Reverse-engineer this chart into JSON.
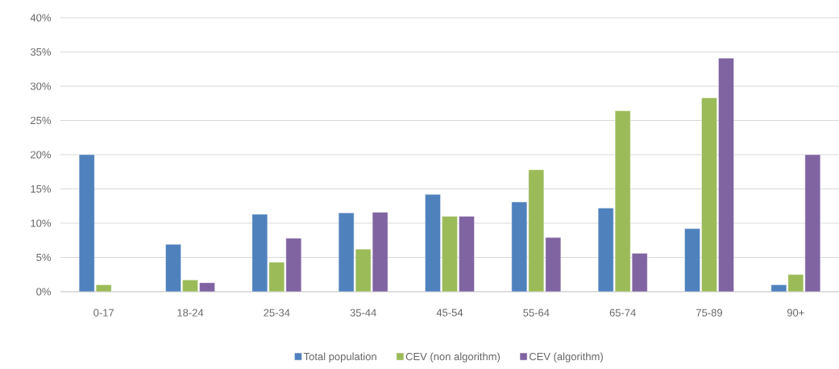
{
  "chart_data": {
    "type": "bar",
    "categories": [
      "0-17",
      "18-24",
      "25-34",
      "35-44",
      "45-54",
      "55-64",
      "65-74",
      "75-89",
      "90+"
    ],
    "series": [
      {
        "name": "Total population",
        "color": "#4f81bd",
        "values": [
          20.0,
          6.9,
          11.3,
          11.5,
          14.2,
          13.1,
          12.2,
          9.2,
          1.0
        ]
      },
      {
        "name": "CEV (non algorithm)",
        "color": "#9bbb59",
        "values": [
          1.0,
          1.7,
          4.3,
          6.2,
          11.0,
          17.8,
          26.4,
          28.3,
          2.5
        ]
      },
      {
        "name": "CEV (algorithm)",
        "color": "#8064a2",
        "values": [
          null,
          1.3,
          7.8,
          11.6,
          11.0,
          7.9,
          5.6,
          34.1,
          20.0
        ]
      }
    ],
    "ylim": [
      0,
      40
    ],
    "yticks": [
      {
        "value": 0,
        "label": "0%"
      },
      {
        "value": 5,
        "label": "5%"
      },
      {
        "value": 10,
        "label": "10%"
      },
      {
        "value": 15,
        "label": "15%"
      },
      {
        "value": 20,
        "label": "20%"
      },
      {
        "value": 25,
        "label": "25%"
      },
      {
        "value": 30,
        "label": "30%"
      },
      {
        "value": 35,
        "label": "35%"
      },
      {
        "value": 40,
        "label": "40%"
      }
    ],
    "grid": "y",
    "legend": "bottom"
  }
}
